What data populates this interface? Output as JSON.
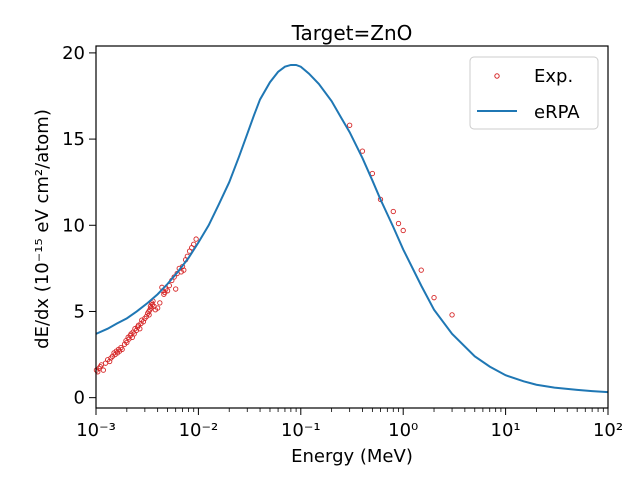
{
  "chart_data": {
    "type": "scatter",
    "title": "Target=ZnO",
    "xlabel": "Energy (MeV)",
    "ylabel": "dE/dx (10⁻¹⁵ eV cm²/atom)",
    "xscale": "log",
    "xlim": [
      0.001,
      100
    ],
    "ylim": [
      -0.6,
      20.4
    ],
    "x_ticks": [
      0.001,
      0.01,
      0.1,
      1,
      10,
      100
    ],
    "x_tick_labels": [
      "10⁻³",
      "10⁻²",
      "10⁻¹",
      "10⁰",
      "10¹",
      "10²"
    ],
    "y_ticks": [
      0,
      5,
      10,
      15,
      20
    ],
    "y_tick_labels": [
      "0",
      "5",
      "10",
      "15",
      "20"
    ],
    "grid": false,
    "legend_position": "top-right",
    "series": [
      {
        "name": "Exp.",
        "kind": "scatter",
        "color": "#d62728",
        "marker": "open-circle",
        "x": [
          0.00101,
          0.00104,
          0.00107,
          0.0011,
          0.00113,
          0.00118,
          0.00124,
          0.0013,
          0.00136,
          0.0014,
          0.00145,
          0.0015,
          0.00154,
          0.00158,
          0.00162,
          0.00166,
          0.0017,
          0.00175,
          0.0018,
          0.0019,
          0.00196,
          0.002,
          0.00206,
          0.0021,
          0.00216,
          0.0022,
          0.00226,
          0.0023,
          0.00236,
          0.0024,
          0.00248,
          0.00255,
          0.0026,
          0.00268,
          0.00275,
          0.0028,
          0.0029,
          0.003,
          0.0031,
          0.0032,
          0.00328,
          0.0033,
          0.00336,
          0.0034,
          0.00345,
          0.0035,
          0.00355,
          0.0036,
          0.00368,
          0.0038,
          0.004,
          0.0042,
          0.0044,
          0.0045,
          0.0046,
          0.0047,
          0.0048,
          0.005,
          0.0052,
          0.0055,
          0.0058,
          0.006,
          0.0062,
          0.0065,
          0.0068,
          0.007,
          0.0072,
          0.0075,
          0.0078,
          0.0082,
          0.0086,
          0.009,
          0.0095,
          0.3,
          0.4,
          0.5,
          0.6,
          0.8,
          0.9,
          1.0,
          1.5,
          2.0,
          3.0
        ],
        "y": [
          1.6,
          1.5,
          1.7,
          1.8,
          1.9,
          1.6,
          2.0,
          2.2,
          2.1,
          2.3,
          2.4,
          2.6,
          2.5,
          2.7,
          2.6,
          2.8,
          2.7,
          2.9,
          2.8,
          3.1,
          3.3,
          3.2,
          3.5,
          3.4,
          3.6,
          3.7,
          3.5,
          3.8,
          3.7,
          4.0,
          3.9,
          4.1,
          4.2,
          4.0,
          4.3,
          4.5,
          4.4,
          4.6,
          4.7,
          4.9,
          5.0,
          4.8,
          5.1,
          5.3,
          5.2,
          5.5,
          5.4,
          5.6,
          5.3,
          5.1,
          5.2,
          5.5,
          6.4,
          6.2,
          6.0,
          6.1,
          6.3,
          6.2,
          6.5,
          6.8,
          7.0,
          6.3,
          7.2,
          7.5,
          7.3,
          7.6,
          7.4,
          8.0,
          8.2,
          8.5,
          8.7,
          8.9,
          9.2,
          15.8,
          14.3,
          13.0,
          11.5,
          10.8,
          10.1,
          9.7,
          7.4,
          5.8,
          4.8
        ]
      },
      {
        "name": "eRPA",
        "kind": "line",
        "color": "#1f77b4",
        "x": [
          0.001,
          0.0013,
          0.0016,
          0.002,
          0.0025,
          0.0032,
          0.004,
          0.005,
          0.0063,
          0.008,
          0.01,
          0.0126,
          0.0158,
          0.02,
          0.025,
          0.03,
          0.035,
          0.04,
          0.05,
          0.06,
          0.07,
          0.08,
          0.09,
          0.1,
          0.12,
          0.15,
          0.2,
          0.25,
          0.3,
          0.4,
          0.5,
          0.6,
          0.8,
          1.0,
          1.5,
          2.0,
          3.0,
          5.0,
          7.0,
          10.0,
          15.0,
          20.0,
          30.0,
          50.0,
          70.0,
          100.0
        ],
        "y": [
          3.7,
          4.0,
          4.3,
          4.6,
          5.0,
          5.5,
          6.0,
          6.6,
          7.3,
          8.1,
          9.0,
          10.0,
          11.2,
          12.5,
          14.0,
          15.3,
          16.4,
          17.3,
          18.3,
          18.9,
          19.2,
          19.3,
          19.3,
          19.2,
          18.8,
          18.2,
          17.2,
          16.2,
          15.4,
          13.9,
          12.6,
          11.5,
          9.9,
          8.6,
          6.5,
          5.1,
          3.7,
          2.4,
          1.8,
          1.3,
          0.95,
          0.75,
          0.58,
          0.45,
          0.38,
          0.32
        ]
      }
    ]
  }
}
